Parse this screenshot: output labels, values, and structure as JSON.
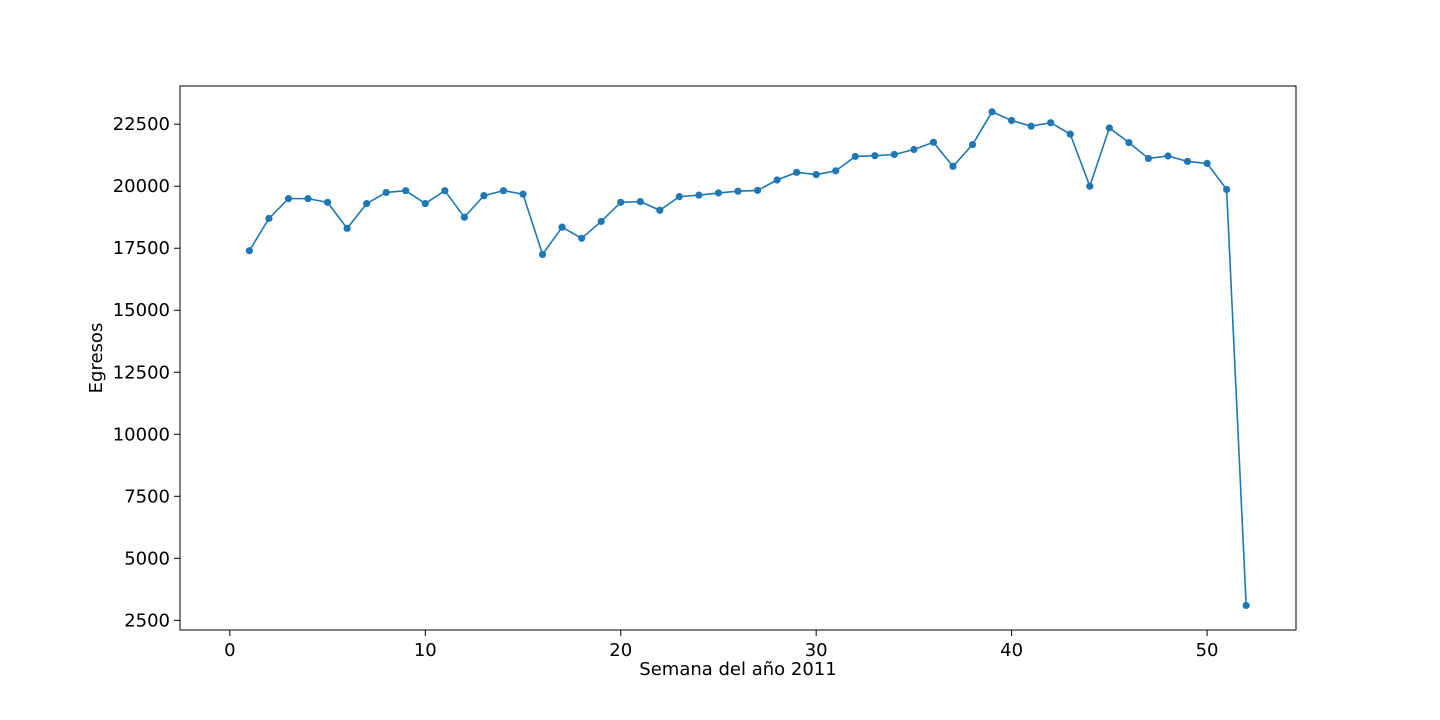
{
  "chart_data": {
    "type": "line",
    "title": "",
    "xlabel": "Semana del año 2011",
    "ylabel": "Egresos",
    "xlim": [
      -2.55,
      54.55
    ],
    "ylim": [
      2110,
      24040
    ],
    "xticks": [
      0,
      10,
      20,
      30,
      40,
      50
    ],
    "yticks": [
      2500,
      5000,
      7500,
      10000,
      12500,
      15000,
      17500,
      20000,
      22500
    ],
    "grid": false,
    "legend": "none",
    "colors": {
      "line": "#1f77b4",
      "marker": "#1f77b4",
      "axes": "#000000",
      "background": "#ffffff"
    },
    "series": [
      {
        "x": [
          1,
          2,
          3,
          4,
          5,
          6,
          7,
          8,
          9,
          10,
          11,
          12,
          13,
          14,
          15,
          16,
          17,
          18,
          19,
          20,
          21,
          22,
          23,
          24,
          25,
          26,
          27,
          28,
          29,
          30,
          31,
          32,
          33,
          34,
          35,
          36,
          37,
          38,
          39,
          40,
          41,
          42,
          43,
          44,
          45,
          46,
          47,
          48,
          49,
          50,
          51,
          52
        ],
        "values": [
          17400,
          18700,
          19500,
          19500,
          19350,
          18300,
          19300,
          19750,
          19820,
          19300,
          19820,
          18750,
          19620,
          19820,
          19680,
          17250,
          18350,
          17900,
          18580,
          19350,
          19380,
          19030,
          19580,
          19640,
          19730,
          19800,
          19830,
          20250,
          20560,
          20470,
          20620,
          21200,
          21230,
          21280,
          21480,
          21770,
          20800,
          21680,
          23000,
          22650,
          22420,
          22560,
          22100,
          20000,
          22350,
          21760,
          21120,
          21220,
          21000,
          20920,
          19870,
          3100
        ]
      }
    ]
  }
}
